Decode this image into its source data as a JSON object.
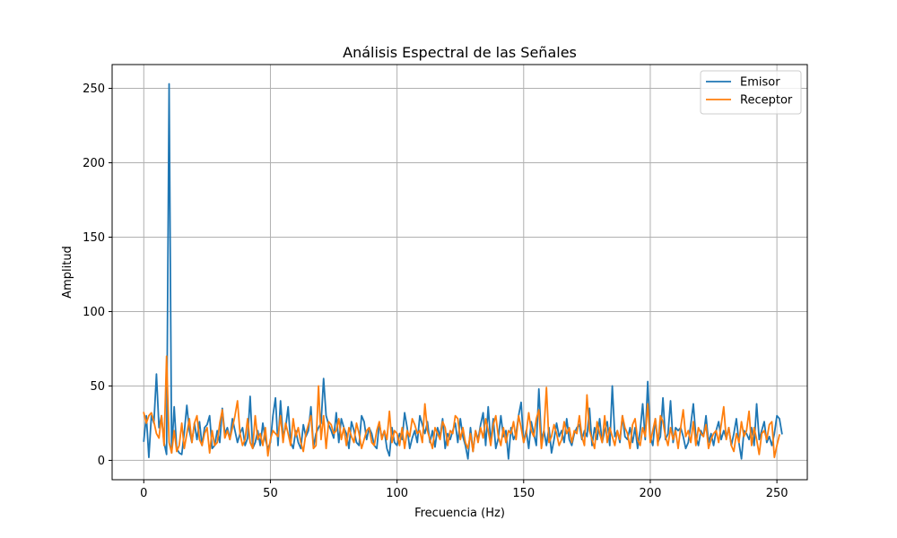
{
  "chart_data": {
    "type": "line",
    "title": "Análisis Espectral de las Señales",
    "xlabel": "Frecuencia (Hz)",
    "ylabel": "Amplitud",
    "xlim": [
      -12.5,
      262
    ],
    "ylim": [
      -13,
      266
    ],
    "xticks": [
      0,
      50,
      100,
      150,
      200,
      250
    ],
    "yticks": [
      0,
      50,
      100,
      150,
      200,
      250
    ],
    "grid": true,
    "legend_position": "top-right",
    "x_step": 1,
    "series": [
      {
        "name": "Emisor",
        "color": "#1f77b4",
        "values": [
          13,
          30,
          2,
          30,
          25,
          58,
          22,
          30,
          12,
          4,
          253,
          5,
          36,
          8,
          5,
          4,
          19,
          37,
          20,
          12,
          25,
          14,
          26,
          10,
          22,
          24,
          30,
          8,
          10,
          20,
          12,
          35,
          18,
          22,
          14,
          28,
          20,
          12,
          18,
          22,
          10,
          15,
          43,
          8,
          12,
          20,
          10,
          25,
          14,
          8,
          12,
          30,
          42,
          10,
          40,
          16,
          22,
          36,
          12,
          8,
          20,
          12,
          8,
          24,
          16,
          20,
          36,
          9,
          18,
          22,
          25,
          55,
          30,
          24,
          20,
          15,
          32,
          12,
          28,
          22,
          18,
          8,
          26,
          20,
          12,
          10,
          30,
          26,
          14,
          22,
          18,
          10,
          8,
          25,
          15,
          20,
          8,
          3,
          22,
          12,
          10,
          18,
          14,
          32,
          22,
          8,
          15,
          20,
          12,
          30,
          24,
          18,
          26,
          12,
          20,
          9,
          22,
          16,
          28,
          8,
          18,
          14,
          20,
          25,
          12,
          28,
          16,
          10,
          1,
          22,
          6,
          20,
          14,
          24,
          32,
          10,
          36,
          12,
          28,
          8,
          15,
          30,
          16,
          20,
          1,
          22,
          14,
          18,
          30,
          39,
          12,
          20,
          8,
          26,
          18,
          10,
          48,
          14,
          20,
          10,
          22,
          5,
          14,
          25,
          16,
          20,
          12,
          28,
          14,
          10,
          18,
          22,
          24,
          14,
          20,
          16,
          35,
          10,
          22,
          14,
          28,
          12,
          20,
          26,
          10,
          50,
          16,
          20,
          12,
          30,
          16,
          14,
          22,
          12,
          22,
          8,
          20,
          38,
          14,
          53,
          16,
          10,
          28,
          12,
          16,
          42,
          14,
          18,
          40,
          12,
          22,
          20,
          22,
          16,
          8,
          12,
          24,
          38,
          16,
          10,
          20,
          16,
          30,
          12,
          18,
          10,
          20,
          26,
          14,
          20,
          15,
          22,
          10,
          18,
          28,
          12,
          1,
          20,
          18,
          14,
          22,
          10,
          38,
          14,
          20,
          26,
          12,
          16,
          10,
          18,
          30,
          28,
          18
        ]
      },
      {
        "name": "Receptor",
        "color": "#ff7f0e",
        "values": [
          32,
          25,
          30,
          32,
          26,
          18,
          15,
          30,
          10,
          70,
          12,
          5,
          20,
          6,
          10,
          25,
          8,
          18,
          28,
          12,
          25,
          30,
          14,
          10,
          18,
          22,
          5,
          20,
          10,
          12,
          25,
          34,
          15,
          20,
          14,
          22,
          30,
          40,
          18,
          10,
          14,
          28,
          12,
          8,
          30,
          14,
          18,
          10,
          22,
          3,
          14,
          20,
          18,
          16,
          30,
          12,
          25,
          18,
          10,
          28,
          16,
          22,
          12,
          6,
          18,
          24,
          30,
          8,
          10,
          50,
          14,
          30,
          8,
          26,
          24,
          18,
          20,
          28,
          14,
          22,
          10,
          22,
          16,
          12,
          25,
          18,
          8,
          14,
          20,
          22,
          12,
          10,
          20,
          26,
          14,
          20,
          14,
          33,
          12,
          20,
          18,
          10,
          22,
          8,
          20,
          16,
          28,
          24,
          18,
          20,
          12,
          38,
          20,
          14,
          8,
          22,
          18,
          14,
          26,
          22,
          10,
          20,
          18,
          30,
          28,
          14,
          22,
          12,
          8,
          18,
          6,
          20,
          12,
          22,
          15,
          28,
          20,
          10,
          24,
          30,
          16,
          10,
          22,
          12,
          20,
          18,
          26,
          14,
          30,
          22,
          12,
          18,
          32,
          20,
          16,
          28,
          34,
          8,
          20,
          49,
          12,
          16,
          24,
          18,
          10,
          14,
          26,
          18,
          22,
          12,
          20,
          18,
          30,
          16,
          10,
          44,
          20,
          14,
          8,
          26,
          18,
          12,
          30,
          12,
          22,
          16,
          10,
          20,
          14,
          30,
          22,
          18,
          8,
          24,
          28,
          14,
          10,
          22,
          16,
          38,
          12,
          20,
          28,
          10,
          30,
          26,
          16,
          10,
          22,
          14,
          20,
          8,
          22,
          34,
          16,
          20,
          12,
          26,
          10,
          22,
          18,
          16,
          24,
          8,
          14,
          18,
          20,
          12,
          24,
          36,
          14,
          22,
          10,
          6,
          18,
          12,
          26,
          16,
          20,
          33,
          10,
          22,
          14,
          4,
          18,
          20,
          14,
          24,
          26,
          2,
          10,
          17
        ]
      }
    ]
  }
}
